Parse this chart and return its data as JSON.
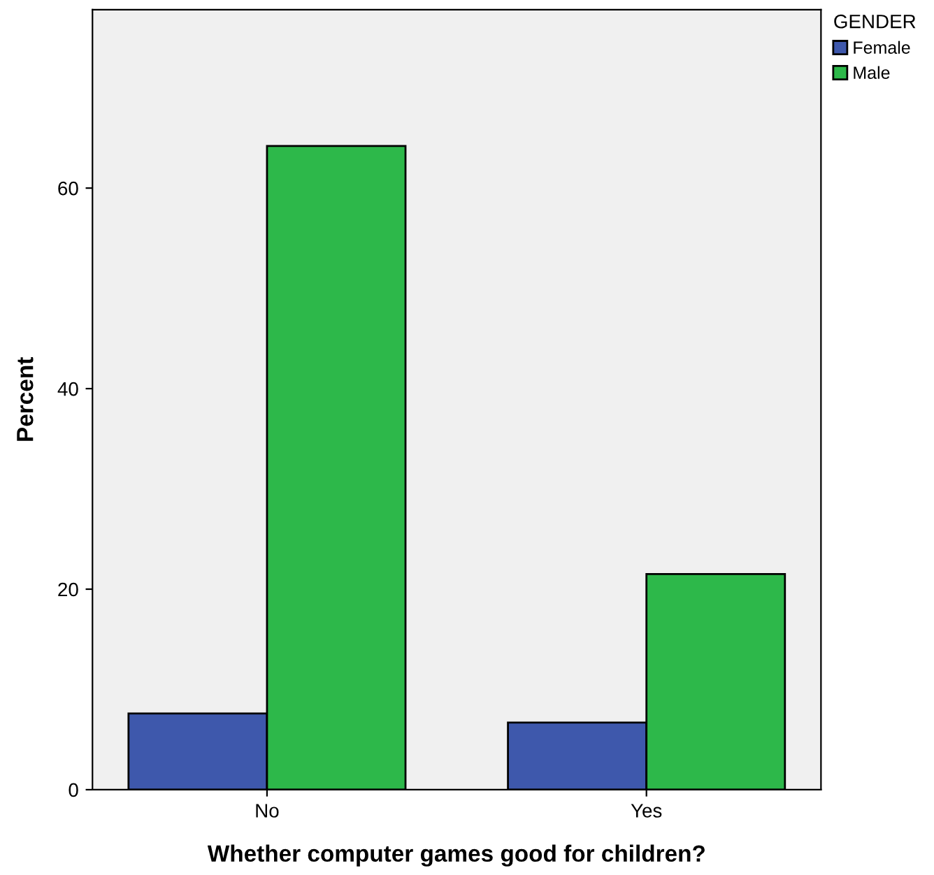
{
  "chart_data": {
    "type": "bar",
    "xlabel": "Whether computer games good for children?",
    "ylabel": "Percent",
    "legend_title": "GENDER",
    "categories": [
      "No",
      "Yes"
    ],
    "series": [
      {
        "name": "Female",
        "color": "#3e58ac",
        "values": [
          7.6,
          6.7
        ]
      },
      {
        "name": "Male",
        "color": "#2db84a",
        "values": [
          64.2,
          21.5
        ]
      }
    ],
    "ylim": [
      0,
      77.8
    ],
    "yticks": [
      0,
      20,
      40,
      60
    ],
    "grid": false,
    "legend": "top right"
  }
}
